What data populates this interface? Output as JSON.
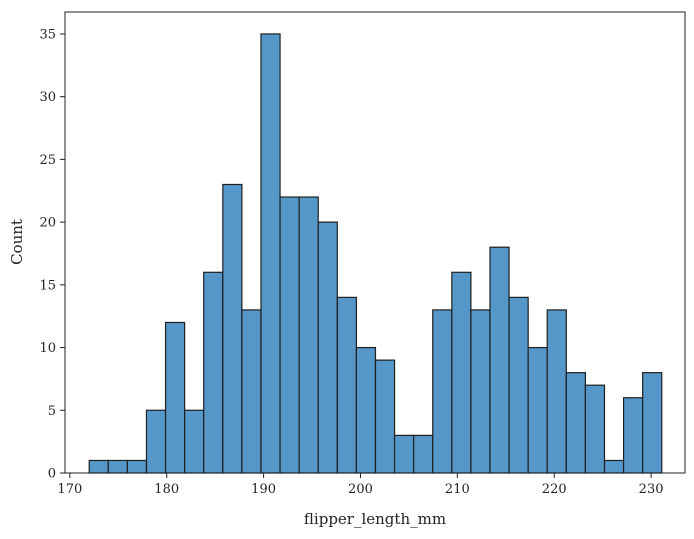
{
  "chart_data": {
    "type": "bar",
    "title": "",
    "xlabel": "flipper_length_mm",
    "ylabel": "Count",
    "xlim": [
      169.5,
      233.5
    ],
    "ylim": [
      0,
      36.75
    ],
    "x_ticks": [
      170,
      180,
      190,
      200,
      210,
      220,
      230
    ],
    "y_ticks": [
      0,
      5,
      10,
      15,
      20,
      25,
      30,
      35
    ],
    "bin_start": 172,
    "bin_width": 1.97,
    "values": [
      1,
      1,
      1,
      5,
      12,
      5,
      16,
      23,
      13,
      35,
      22,
      22,
      20,
      14,
      10,
      9,
      3,
      3,
      13,
      16,
      13,
      18,
      14,
      10,
      13,
      8,
      7,
      1,
      6,
      8
    ],
    "bar_color": "#5597c9",
    "edge_color": "#1f1f1f",
    "grid": false,
    "legend": "none"
  }
}
